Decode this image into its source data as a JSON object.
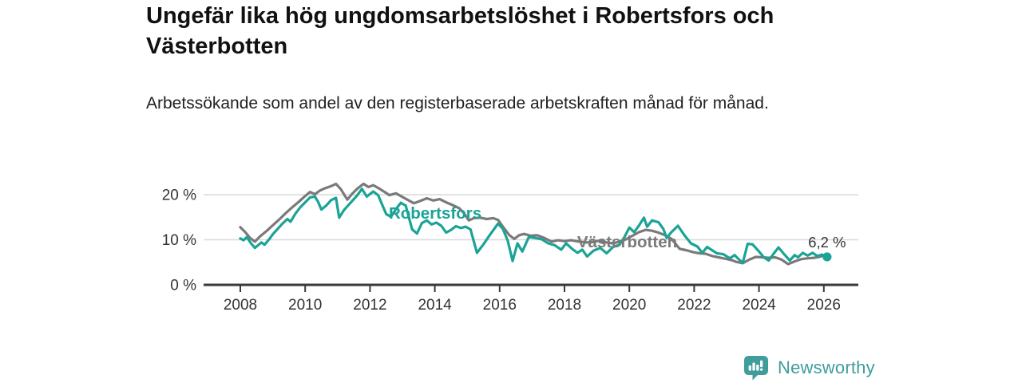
{
  "header": {
    "title": "Ungefär lika hög ungdomsarbetslöshet i Robertsfors och Västerbotten",
    "subtitle": "Arbetssökande som andel av den registerbaserade arbetskraften månad för månad."
  },
  "chart_data": {
    "type": "line",
    "title": "Ungefär lika hög ungdomsarbetslöshet i Robertsfors och Västerbotten",
    "subtitle": "Arbetssökande som andel av den registerbaserade arbetskraften månad för månad.",
    "unit": "%",
    "grid": "horizontal-only",
    "legend_position": "inline-labels",
    "x_ticks": [
      2008,
      2010,
      2012,
      2014,
      2016,
      2018,
      2020,
      2022,
      2024,
      2026
    ],
    "y_ticks": [
      {
        "value": 0,
        "label": "0 %"
      },
      {
        "value": 10,
        "label": "10 %"
      },
      {
        "value": 20,
        "label": "20 %"
      }
    ],
    "xlim": [
      2006.9,
      2027.1
    ],
    "ylim": [
      0,
      24.6
    ],
    "colors": {
      "grid": "#d9d9d9",
      "axis": "#3a3a3a",
      "tick_text": "#333333",
      "end_label_text": "#333333"
    },
    "series": [
      {
        "name": "Västerbotten",
        "color": "#7a7a7a",
        "label_pos": [
          2018.39,
          8.3
        ],
        "points": [
          [
            2008.0,
            12.8
          ],
          [
            2008.15,
            11.7
          ],
          [
            2008.3,
            10.4
          ],
          [
            2008.45,
            9.6
          ],
          [
            2008.6,
            10.7
          ],
          [
            2008.8,
            11.9
          ],
          [
            2009.0,
            13.2
          ],
          [
            2009.2,
            14.5
          ],
          [
            2009.4,
            15.9
          ],
          [
            2009.6,
            17.2
          ],
          [
            2009.8,
            18.4
          ],
          [
            2010.0,
            19.7
          ],
          [
            2010.15,
            20.6
          ],
          [
            2010.3,
            20.1
          ],
          [
            2010.45,
            20.9
          ],
          [
            2010.6,
            21.4
          ],
          [
            2010.8,
            21.9
          ],
          [
            2010.95,
            22.4
          ],
          [
            2011.1,
            21.2
          ],
          [
            2011.3,
            18.9
          ],
          [
            2011.45,
            20.2
          ],
          [
            2011.6,
            21.3
          ],
          [
            2011.8,
            22.4
          ],
          [
            2011.95,
            21.7
          ],
          [
            2012.1,
            22.1
          ],
          [
            2012.3,
            21.3
          ],
          [
            2012.45,
            20.6
          ],
          [
            2012.6,
            19.9
          ],
          [
            2012.8,
            20.3
          ],
          [
            2012.95,
            19.7
          ],
          [
            2013.15,
            18.9
          ],
          [
            2013.35,
            18.1
          ],
          [
            2013.55,
            18.6
          ],
          [
            2013.75,
            19.2
          ],
          [
            2013.95,
            18.7
          ],
          [
            2014.15,
            19.0
          ],
          [
            2014.35,
            18.3
          ],
          [
            2014.55,
            17.7
          ],
          [
            2014.75,
            17.0
          ],
          [
            2014.9,
            15.9
          ],
          [
            2015.05,
            14.3
          ],
          [
            2015.2,
            14.8
          ],
          [
            2015.4,
            14.9
          ],
          [
            2015.6,
            14.6
          ],
          [
            2015.8,
            14.8
          ],
          [
            2015.95,
            14.4
          ],
          [
            2016.15,
            12.4
          ],
          [
            2016.3,
            11.0
          ],
          [
            2016.45,
            10.2
          ],
          [
            2016.6,
            11.0
          ],
          [
            2016.75,
            11.3
          ],
          [
            2016.95,
            10.9
          ],
          [
            2017.15,
            11.0
          ],
          [
            2017.35,
            10.5
          ],
          [
            2017.6,
            9.6
          ],
          [
            2017.8,
            9.9
          ],
          [
            2018.0,
            9.7
          ],
          [
            2018.2,
            9.9
          ],
          [
            2018.45,
            9.6
          ],
          [
            2018.7,
            9.4
          ],
          [
            2018.9,
            9.6
          ],
          [
            2019.1,
            9.8
          ],
          [
            2019.3,
            9.4
          ],
          [
            2019.5,
            9.2
          ],
          [
            2019.7,
            9.6
          ],
          [
            2019.9,
            10.1
          ],
          [
            2020.1,
            10.9
          ],
          [
            2020.3,
            11.7
          ],
          [
            2020.5,
            12.2
          ],
          [
            2020.7,
            12.0
          ],
          [
            2020.9,
            11.6
          ],
          [
            2021.1,
            11.0
          ],
          [
            2021.3,
            10.2
          ],
          [
            2021.55,
            8.0
          ],
          [
            2021.75,
            7.7
          ],
          [
            2021.95,
            7.3
          ],
          [
            2022.15,
            7.0
          ],
          [
            2022.35,
            6.9
          ],
          [
            2022.55,
            6.4
          ],
          [
            2022.75,
            6.1
          ],
          [
            2022.95,
            5.8
          ],
          [
            2023.15,
            5.5
          ],
          [
            2023.3,
            5.1
          ],
          [
            2023.5,
            4.8
          ],
          [
            2023.7,
            5.6
          ],
          [
            2023.9,
            6.2
          ],
          [
            2024.1,
            6.1
          ],
          [
            2024.3,
            6.0
          ],
          [
            2024.5,
            6.1
          ],
          [
            2024.7,
            5.6
          ],
          [
            2024.9,
            4.6
          ],
          [
            2025.1,
            5.2
          ],
          [
            2025.3,
            5.7
          ],
          [
            2025.5,
            5.9
          ],
          [
            2025.7,
            6.0
          ],
          [
            2025.85,
            6.2
          ],
          [
            2026.0,
            6.5
          ]
        ]
      },
      {
        "name": "Robertsfors",
        "color": "#1aa396",
        "label_pos": [
          2012.58,
          14.7
        ],
        "end_label": "6,2 %",
        "end_dot": true,
        "points": [
          [
            2008.0,
            10.3
          ],
          [
            2008.1,
            9.9
          ],
          [
            2008.2,
            10.6
          ],
          [
            2008.33,
            9.2
          ],
          [
            2008.45,
            8.2
          ],
          [
            2008.55,
            8.8
          ],
          [
            2008.65,
            9.4
          ],
          [
            2008.75,
            8.9
          ],
          [
            2008.9,
            10.2
          ],
          [
            2009.0,
            11.2
          ],
          [
            2009.15,
            12.4
          ],
          [
            2009.3,
            13.6
          ],
          [
            2009.45,
            14.6
          ],
          [
            2009.55,
            14.0
          ],
          [
            2009.7,
            15.8
          ],
          [
            2009.85,
            17.2
          ],
          [
            2010.0,
            18.3
          ],
          [
            2010.15,
            19.4
          ],
          [
            2010.3,
            19.6
          ],
          [
            2010.4,
            18.4
          ],
          [
            2010.5,
            16.7
          ],
          [
            2010.65,
            17.6
          ],
          [
            2010.8,
            18.8
          ],
          [
            2010.95,
            19.3
          ],
          [
            2011.05,
            14.9
          ],
          [
            2011.2,
            16.6
          ],
          [
            2011.4,
            18.2
          ],
          [
            2011.6,
            19.8
          ],
          [
            2011.75,
            21.3
          ],
          [
            2011.9,
            19.6
          ],
          [
            2012.1,
            20.7
          ],
          [
            2012.25,
            19.9
          ],
          [
            2012.4,
            17.4
          ],
          [
            2012.5,
            15.7
          ],
          [
            2012.65,
            15.1
          ],
          [
            2012.8,
            16.8
          ],
          [
            2012.95,
            18.2
          ],
          [
            2013.1,
            17.6
          ],
          [
            2013.3,
            12.3
          ],
          [
            2013.45,
            11.4
          ],
          [
            2013.6,
            13.7
          ],
          [
            2013.75,
            14.3
          ],
          [
            2013.9,
            13.4
          ],
          [
            2014.05,
            13.8
          ],
          [
            2014.2,
            13.1
          ],
          [
            2014.35,
            11.6
          ],
          [
            2014.5,
            12.2
          ],
          [
            2014.65,
            13.0
          ],
          [
            2014.8,
            12.6
          ],
          [
            2014.95,
            12.9
          ],
          [
            2015.1,
            12.3
          ],
          [
            2015.3,
            7.1
          ],
          [
            2015.5,
            9.0
          ],
          [
            2015.7,
            11.1
          ],
          [
            2015.95,
            13.6
          ],
          [
            2016.1,
            12.4
          ],
          [
            2016.25,
            9.8
          ],
          [
            2016.4,
            5.3
          ],
          [
            2016.55,
            9.2
          ],
          [
            2016.7,
            7.4
          ],
          [
            2016.9,
            10.6
          ],
          [
            2017.1,
            10.4
          ],
          [
            2017.3,
            10.1
          ],
          [
            2017.5,
            9.2
          ],
          [
            2017.7,
            8.8
          ],
          [
            2017.9,
            7.8
          ],
          [
            2018.05,
            9.2
          ],
          [
            2018.25,
            7.9
          ],
          [
            2018.4,
            7.1
          ],
          [
            2018.55,
            7.8
          ],
          [
            2018.7,
            6.3
          ],
          [
            2018.9,
            7.6
          ],
          [
            2019.1,
            8.2
          ],
          [
            2019.3,
            7.0
          ],
          [
            2019.5,
            8.4
          ],
          [
            2019.7,
            8.9
          ],
          [
            2019.85,
            10.6
          ],
          [
            2020.0,
            12.7
          ],
          [
            2020.15,
            11.7
          ],
          [
            2020.3,
            13.2
          ],
          [
            2020.45,
            14.9
          ],
          [
            2020.55,
            12.9
          ],
          [
            2020.7,
            14.3
          ],
          [
            2020.9,
            13.9
          ],
          [
            2021.05,
            12.4
          ],
          [
            2021.15,
            10.4
          ],
          [
            2021.3,
            11.7
          ],
          [
            2021.5,
            13.1
          ],
          [
            2021.7,
            11.0
          ],
          [
            2021.9,
            9.2
          ],
          [
            2022.1,
            8.5
          ],
          [
            2022.25,
            7.1
          ],
          [
            2022.4,
            8.4
          ],
          [
            2022.55,
            7.7
          ],
          [
            2022.7,
            7.0
          ],
          [
            2022.9,
            6.8
          ],
          [
            2023.1,
            5.9
          ],
          [
            2023.25,
            6.6
          ],
          [
            2023.4,
            5.5
          ],
          [
            2023.5,
            4.9
          ],
          [
            2023.65,
            9.1
          ],
          [
            2023.8,
            9.0
          ],
          [
            2024.0,
            7.4
          ],
          [
            2024.15,
            6.1
          ],
          [
            2024.3,
            5.4
          ],
          [
            2024.45,
            6.9
          ],
          [
            2024.6,
            8.3
          ],
          [
            2024.75,
            7.0
          ],
          [
            2024.95,
            5.4
          ],
          [
            2025.1,
            6.6
          ],
          [
            2025.2,
            6.1
          ],
          [
            2025.35,
            7.1
          ],
          [
            2025.5,
            6.5
          ],
          [
            2025.65,
            7.1
          ],
          [
            2025.8,
            6.4
          ],
          [
            2025.95,
            6.7
          ],
          [
            2026.1,
            6.2
          ]
        ]
      }
    ]
  },
  "footer": {
    "brand": "Newsworthy",
    "brand_color": "#3F9D9B",
    "logo_icon": "newsworthy-bars-icon"
  }
}
